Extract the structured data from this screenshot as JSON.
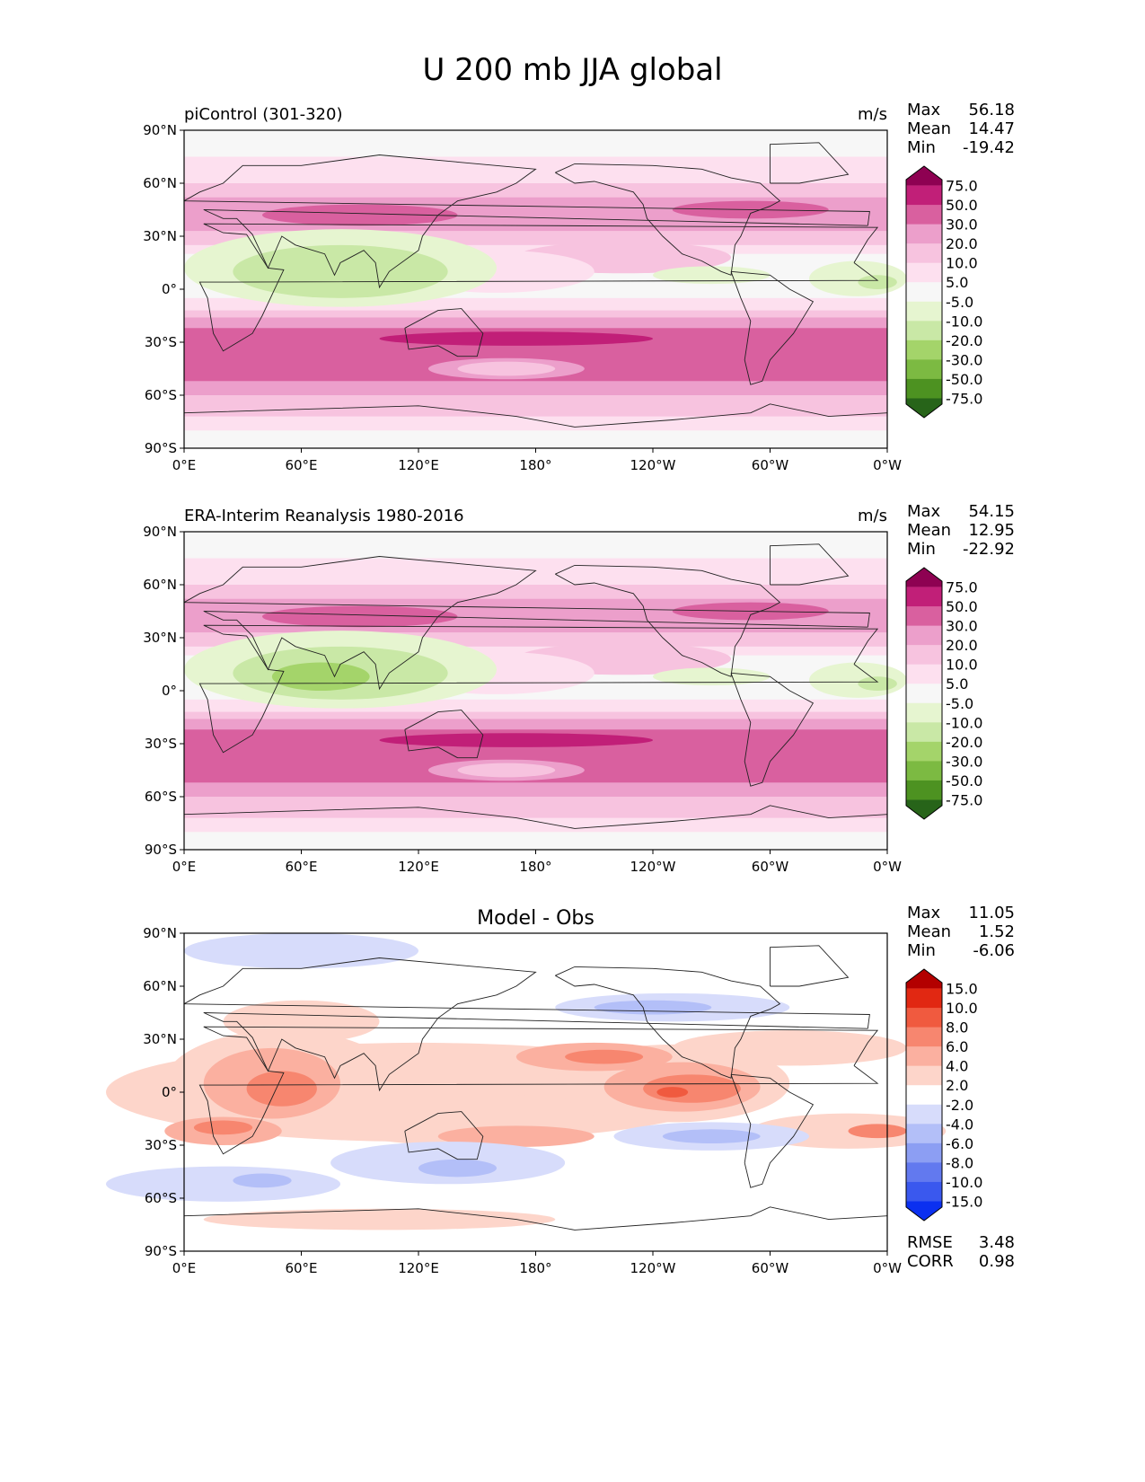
{
  "figure_title": "U 200 mb JJA global",
  "colors": {
    "pink": [
      "#f7f7f7",
      "#fde0ef",
      "#f7c3df",
      "#ec9fcb",
      "#d9609f",
      "#c11f78",
      "#8e0152"
    ],
    "green": [
      "#f7f7f7",
      "#e6f5d0",
      "#c9e8a6",
      "#a4d46a",
      "#7cba42",
      "#4d9221",
      "#276419"
    ],
    "red": [
      "#ffffff",
      "#fdd5ca",
      "#fbb0a0",
      "#f7866f",
      "#f05a3f",
      "#e12812",
      "#b30000"
    ],
    "blue": [
      "#ffffff",
      "#d7dcfb",
      "#b3bff8",
      "#8c9ef3",
      "#6279ef",
      "#3a58ee",
      "#0b30f0"
    ]
  },
  "chart_data": [
    {
      "type": "heatmap",
      "title": "piControl (301-320)",
      "units": "m/s",
      "stats": {
        "max": "56.18",
        "mean": "14.47",
        "min": "-19.42"
      },
      "xlabel": "",
      "ylabel": "",
      "x_ticks": [
        "0°E",
        "60°E",
        "120°E",
        "180°",
        "120°W",
        "60°W",
        "0°W"
      ],
      "y_ticks": [
        "90°N",
        "60°N",
        "30°N",
        "0°",
        "30°S",
        "60°S",
        "90°S"
      ],
      "colorbar_levels": [
        "75.0",
        "50.0",
        "30.0",
        "20.0",
        "10.0",
        "5.0",
        "-5.0",
        "-10.0",
        "-20.0",
        "-30.0",
        "-50.0",
        "-75.0"
      ],
      "features": [
        {
          "lon": 80,
          "lat": 42,
          "value": 55
        },
        {
          "lon": 170,
          "lat": -28,
          "value": 56
        },
        {
          "lon": 290,
          "lat": 45,
          "value": 30
        },
        {
          "lon": 70,
          "lat": 10,
          "value": -19
        },
        {
          "lon": 355,
          "lat": 5,
          "value": -12
        }
      ]
    },
    {
      "type": "heatmap",
      "title": "ERA-Interim Reanalysis 1980-2016",
      "units": "m/s",
      "stats": {
        "max": "54.15",
        "mean": "12.95",
        "min": "-22.92"
      },
      "xlabel": "",
      "ylabel": "",
      "x_ticks": [
        "0°E",
        "60°E",
        "120°E",
        "180°",
        "120°W",
        "60°W",
        "0°W"
      ],
      "y_ticks": [
        "90°N",
        "60°N",
        "30°N",
        "0°",
        "30°S",
        "60°S",
        "90°S"
      ],
      "colorbar_levels": [
        "75.0",
        "50.0",
        "30.0",
        "20.0",
        "10.0",
        "5.0",
        "-5.0",
        "-10.0",
        "-20.0",
        "-30.0",
        "-50.0",
        "-75.0"
      ],
      "features": [
        {
          "lon": 90,
          "lat": 42,
          "value": 52
        },
        {
          "lon": 160,
          "lat": -28,
          "value": 54
        },
        {
          "lon": 290,
          "lat": 45,
          "value": 30
        },
        {
          "lon": 70,
          "lat": 10,
          "value": -23
        },
        {
          "lon": 355,
          "lat": 8,
          "value": -12
        }
      ]
    },
    {
      "type": "heatmap",
      "title": "Model - Obs",
      "units": "",
      "stats": {
        "max": "11.05",
        "mean": "1.52",
        "min": "-6.06"
      },
      "metrics": {
        "rmse_label": "RMSE",
        "rmse": "3.48",
        "corr_label": "CORR",
        "corr": "0.98"
      },
      "xlabel": "",
      "ylabel": "",
      "x_ticks": [
        "0°E",
        "60°E",
        "120°E",
        "180°",
        "120°W",
        "60°W",
        "0°W"
      ],
      "y_ticks": [
        "90°N",
        "60°N",
        "30°N",
        "0°",
        "30°S",
        "60°S",
        "90°S"
      ],
      "colorbar_levels": [
        "15.0",
        "10.0",
        "8.0",
        "6.0",
        "4.0",
        "2.0",
        "-2.0",
        "-4.0",
        "-6.0",
        "-8.0",
        "-10.0",
        "-15.0"
      ],
      "features": [
        {
          "lon": 255,
          "lat": 2,
          "value": 11
        },
        {
          "lon": 50,
          "lat": 2,
          "value": 9
        },
        {
          "lon": 215,
          "lat": 20,
          "value": 8
        },
        {
          "lon": 20,
          "lat": -20,
          "value": 7
        },
        {
          "lon": 250,
          "lat": 48,
          "value": -5
        },
        {
          "lon": 270,
          "lat": -25,
          "value": -5
        },
        {
          "lon": 130,
          "lat": -40,
          "value": -6
        }
      ]
    }
  ]
}
